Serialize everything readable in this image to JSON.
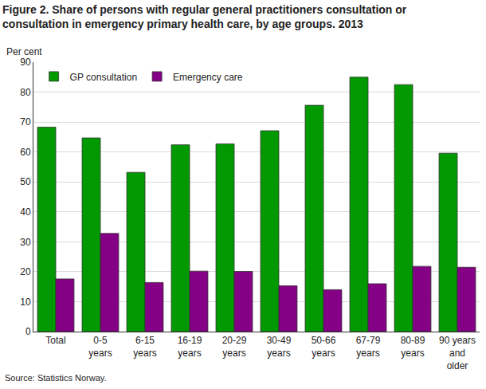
{
  "chart_data": {
    "type": "bar",
    "title": "Figure 2. Share of persons with regular general practitioners consultation or consultation in emergency primary health care, by age groups. 2013",
    "y_label": "Per cent",
    "note": "Source: Statistics Norway.",
    "categories": [
      "Total",
      "0-5 years",
      "6-15 years",
      "16-19 years",
      "20-29 years",
      "30-49 years",
      "50-66 years",
      "67-79 years",
      "80-89 years",
      "90 years and older"
    ],
    "series": [
      {
        "name": "GP consultation",
        "color": "#009a00",
        "values": [
          68.3,
          64.7,
          53.2,
          62.4,
          62.7,
          67.1,
          75.6,
          85.0,
          82.5,
          59.6
        ]
      },
      {
        "name": "Emergency care",
        "color": "#840084",
        "values": [
          17.6,
          32.8,
          16.4,
          20.2,
          20.1,
          15.3,
          14.0,
          16.0,
          21.8,
          21.5
        ]
      }
    ],
    "ylim": [
      0,
      90
    ],
    "yticks": [
      0,
      10,
      20,
      30,
      40,
      50,
      60,
      70,
      80,
      90
    ],
    "grid": true,
    "legend": "top-left"
  }
}
